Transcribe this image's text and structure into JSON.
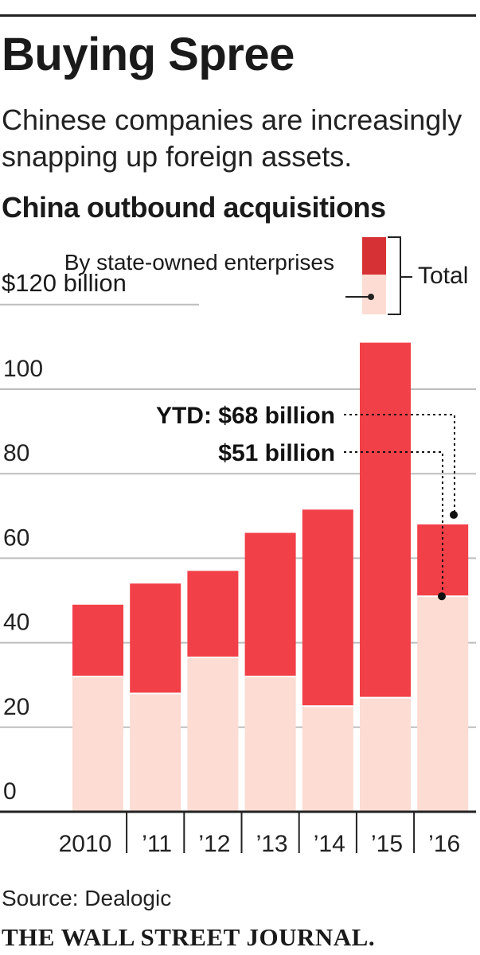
{
  "header": {
    "title": "Buying Spree",
    "subtitle": "Chinese companies are increasingly snapping up foreign assets."
  },
  "colors": {
    "total": "#f24048",
    "state_owned": "#fcdcd3",
    "legend_total": "#d63236",
    "rule": "#222222",
    "grid": "#bdbdbd"
  },
  "chart_data": {
    "type": "bar",
    "stacked": true,
    "title": "China outbound acquisitions",
    "unit_label": "$120 billion",
    "categories": [
      "2010",
      "’11",
      "’12",
      "’13",
      "’14",
      "’15",
      "’16"
    ],
    "series": [
      {
        "name": "By state-owned enterprises",
        "values": [
          32,
          28,
          36.5,
          32,
          25,
          27,
          51
        ]
      },
      {
        "name": "Total",
        "values": [
          49,
          54,
          57,
          66,
          71.5,
          111,
          68
        ]
      }
    ],
    "ylim": [
      0,
      120
    ],
    "yticks": [
      0,
      20,
      40,
      60,
      80,
      100,
      120
    ],
    "ytick_labels": [
      "0",
      "20",
      "40",
      "60",
      "80",
      "100"
    ],
    "legend": {
      "state_owned_label": "By state-owned enterprises",
      "total_label": "Total"
    },
    "annotations": [
      {
        "text": "YTD: $68 billion",
        "category_index": 6,
        "value": 68
      },
      {
        "text": "$51 billion",
        "category_index": 6,
        "value": 51
      }
    ]
  },
  "footer": {
    "source": "Source: Dealogic",
    "masthead": "THE WALL STREET JOURNAL."
  }
}
